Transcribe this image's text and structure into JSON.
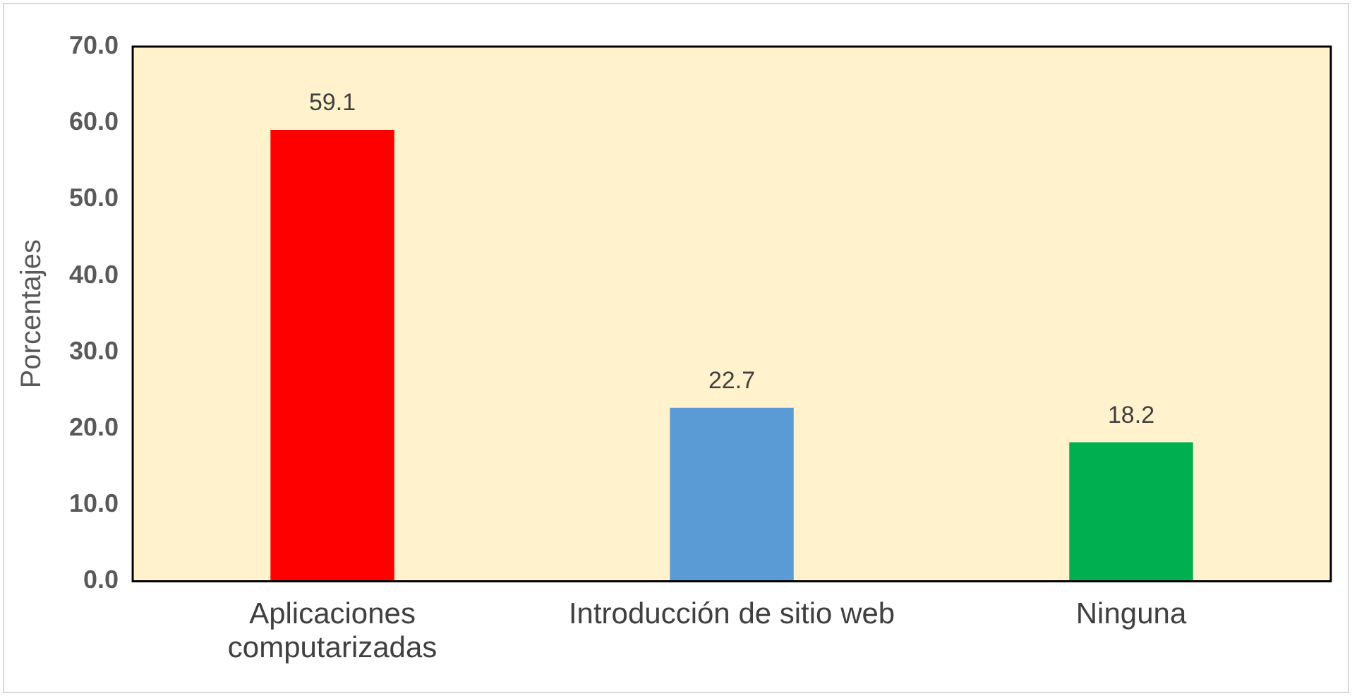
{
  "chart_data": {
    "type": "bar",
    "ylabel": "Porcentajes",
    "categories": [
      "Aplicaciones computarizadas",
      "Introducción de sitio web",
      "Ninguna"
    ],
    "values": [
      59.1,
      22.7,
      18.2
    ],
    "colors": [
      "#ff0000",
      "#5b9bd5",
      "#00b050"
    ],
    "ylim": [
      0,
      70
    ],
    "yticks": [
      {
        "value": 0,
        "label": "0.0"
      },
      {
        "value": 10,
        "label": "10.0"
      },
      {
        "value": 20,
        "label": "20.0"
      },
      {
        "value": 30,
        "label": "30.0"
      },
      {
        "value": 40,
        "label": "40.0"
      },
      {
        "value": 50,
        "label": "50.0"
      },
      {
        "value": 60,
        "label": "60.0"
      },
      {
        "value": 70,
        "label": "70.0"
      }
    ],
    "data_labels": true,
    "grid": false,
    "legend": false
  }
}
